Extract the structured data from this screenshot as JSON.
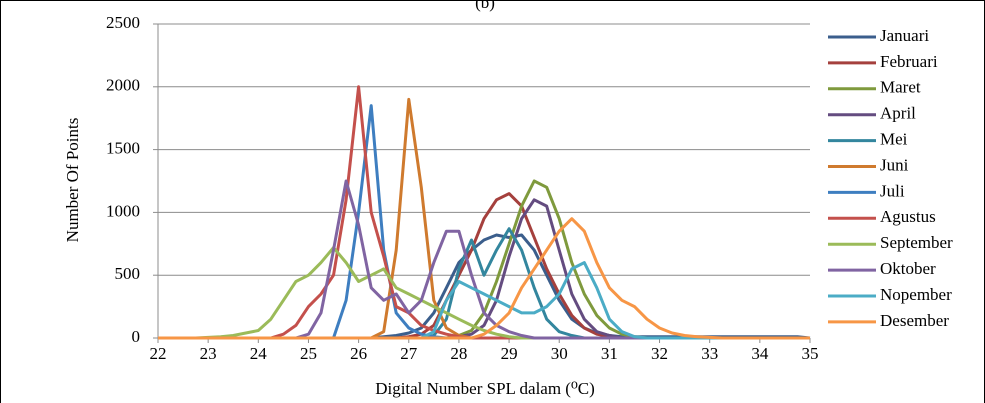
{
  "chart_data": {
    "type": "line",
    "title": "(b)",
    "x_label": "Digital Number SPL dalam (⁰C)",
    "y_label": "Number Of Points",
    "x": [
      22,
      22.25,
      22.5,
      22.75,
      23,
      23.25,
      23.5,
      23.75,
      24,
      24.25,
      24.5,
      24.75,
      25,
      25.25,
      25.5,
      25.75,
      26,
      26.25,
      26.5,
      26.75,
      27,
      27.25,
      27.5,
      27.75,
      28,
      28.25,
      28.5,
      28.75,
      29,
      29.25,
      29.5,
      29.75,
      30,
      30.25,
      30.5,
      30.75,
      31,
      31.25,
      31.5,
      31.75,
      32,
      32.25,
      32.5,
      32.75,
      33,
      33.25,
      33.5,
      33.75,
      34,
      34.25,
      34.5,
      34.75,
      35
    ],
    "xlim": [
      22,
      35
    ],
    "xticks": [
      22,
      23,
      24,
      25,
      26,
      27,
      28,
      29,
      30,
      31,
      32,
      33,
      34,
      35
    ],
    "ylim": [
      0,
      2500
    ],
    "yticks": [
      0,
      500,
      1000,
      1500,
      2000,
      2500
    ],
    "grid": true,
    "series": [
      {
        "name": "Januari",
        "color": "#3b5e8c",
        "values": [
          0,
          0,
          0,
          0,
          0,
          0,
          0,
          0,
          0,
          0,
          0,
          0,
          0,
          0,
          0,
          0,
          0,
          0,
          10,
          20,
          40,
          80,
          200,
          400,
          600,
          700,
          780,
          820,
          800,
          820,
          700,
          500,
          300,
          150,
          80,
          40,
          20,
          10,
          10,
          10,
          10,
          10,
          10,
          10,
          10,
          10,
          10,
          10,
          10,
          10,
          10,
          10,
          0
        ]
      },
      {
        "name": "Februari",
        "color": "#a5403d",
        "values": [
          0,
          0,
          0,
          0,
          0,
          0,
          0,
          0,
          0,
          0,
          0,
          0,
          0,
          0,
          0,
          0,
          0,
          0,
          0,
          0,
          10,
          30,
          100,
          300,
          500,
          700,
          950,
          1100,
          1150,
          1050,
          800,
          550,
          350,
          180,
          80,
          30,
          10,
          0,
          0,
          0,
          0,
          0,
          0,
          0,
          0,
          0,
          0,
          0,
          0,
          0,
          0,
          0,
          0
        ]
      },
      {
        "name": "Maret",
        "color": "#7f9a3d",
        "values": [
          0,
          0,
          0,
          0,
          0,
          0,
          0,
          0,
          0,
          0,
          0,
          0,
          0,
          0,
          0,
          0,
          0,
          0,
          0,
          0,
          0,
          0,
          0,
          0,
          20,
          60,
          200,
          450,
          750,
          1050,
          1250,
          1200,
          950,
          600,
          350,
          180,
          80,
          30,
          10,
          0,
          0,
          0,
          0,
          0,
          0,
          0,
          0,
          0,
          0,
          0,
          0,
          0,
          0
        ]
      },
      {
        "name": "April",
        "color": "#644c80",
        "values": [
          0,
          0,
          0,
          0,
          0,
          0,
          0,
          0,
          0,
          0,
          0,
          0,
          0,
          0,
          0,
          0,
          0,
          0,
          0,
          0,
          0,
          0,
          0,
          0,
          10,
          30,
          100,
          300,
          650,
          950,
          1100,
          1050,
          700,
          350,
          150,
          50,
          20,
          0,
          0,
          0,
          0,
          0,
          0,
          0,
          0,
          0,
          0,
          0,
          0,
          0,
          0,
          0,
          0
        ]
      },
      {
        "name": "Mei",
        "color": "#33869e",
        "values": [
          0,
          0,
          0,
          0,
          0,
          0,
          0,
          0,
          0,
          0,
          0,
          0,
          0,
          0,
          0,
          0,
          0,
          0,
          0,
          0,
          0,
          0,
          20,
          150,
          550,
          780,
          500,
          700,
          870,
          700,
          400,
          150,
          50,
          20,
          0,
          0,
          0,
          0,
          0,
          0,
          0,
          0,
          0,
          0,
          0,
          0,
          0,
          0,
          0,
          0,
          0,
          0,
          0
        ]
      },
      {
        "name": "Juni",
        "color": "#cf7a2e",
        "values": [
          0,
          0,
          0,
          0,
          0,
          0,
          0,
          0,
          0,
          0,
          0,
          0,
          0,
          0,
          0,
          0,
          0,
          0,
          50,
          700,
          1900,
          1200,
          300,
          80,
          20,
          0,
          0,
          0,
          0,
          0,
          0,
          0,
          0,
          0,
          0,
          0,
          0,
          0,
          0,
          0,
          0,
          0,
          0,
          0,
          0,
          0,
          0,
          0,
          0,
          0,
          0,
          0,
          0
        ]
      },
      {
        "name": "Juli",
        "color": "#3e7ec0",
        "values": [
          0,
          0,
          0,
          0,
          0,
          0,
          0,
          0,
          0,
          0,
          0,
          0,
          0,
          0,
          0,
          300,
          1000,
          1850,
          700,
          200,
          80,
          30,
          10,
          0,
          0,
          0,
          0,
          0,
          0,
          0,
          0,
          0,
          0,
          0,
          0,
          0,
          0,
          0,
          0,
          0,
          0,
          0,
          0,
          0,
          0,
          0,
          0,
          0,
          0,
          0,
          0,
          0,
          0
        ]
      },
      {
        "name": "Agustus",
        "color": "#c4504c",
        "values": [
          0,
          0,
          0,
          0,
          0,
          0,
          0,
          0,
          0,
          0,
          30,
          100,
          250,
          350,
          500,
          1100,
          2000,
          1000,
          650,
          250,
          200,
          100,
          60,
          30,
          10,
          0,
          0,
          0,
          0,
          0,
          0,
          0,
          0,
          0,
          0,
          0,
          0,
          0,
          0,
          0,
          0,
          0,
          0,
          0,
          0,
          0,
          0,
          0,
          0,
          0,
          0,
          0,
          0
        ]
      },
      {
        "name": "September",
        "color": "#9bbb59",
        "values": [
          0,
          0,
          0,
          0,
          5,
          10,
          20,
          40,
          60,
          150,
          300,
          450,
          500,
          600,
          720,
          600,
          450,
          500,
          550,
          400,
          350,
          300,
          250,
          200,
          150,
          100,
          60,
          30,
          10,
          0,
          0,
          0,
          0,
          0,
          0,
          0,
          0,
          0,
          0,
          0,
          0,
          0,
          0,
          0,
          0,
          0,
          0,
          0,
          0,
          0,
          0,
          0,
          0
        ]
      },
      {
        "name": "Oktober",
        "color": "#8064a2",
        "values": [
          0,
          0,
          0,
          0,
          0,
          0,
          0,
          0,
          0,
          0,
          0,
          0,
          30,
          200,
          700,
          1250,
          900,
          400,
          300,
          350,
          200,
          300,
          600,
          850,
          850,
          500,
          200,
          100,
          50,
          20,
          0,
          0,
          0,
          0,
          0,
          0,
          0,
          0,
          0,
          0,
          0,
          0,
          0,
          0,
          0,
          0,
          0,
          0,
          0,
          0,
          0,
          0,
          0
        ]
      },
      {
        "name": "Nopember",
        "color": "#4bacc6",
        "values": [
          0,
          0,
          0,
          0,
          0,
          0,
          0,
          0,
          0,
          0,
          0,
          0,
          0,
          0,
          0,
          0,
          0,
          0,
          0,
          0,
          0,
          0,
          50,
          300,
          450,
          400,
          350,
          300,
          250,
          200,
          200,
          250,
          350,
          550,
          600,
          400,
          150,
          50,
          10,
          0,
          0,
          0,
          0,
          0,
          0,
          0,
          0,
          0,
          0,
          0,
          0,
          0,
          0
        ]
      },
      {
        "name": "Desember",
        "color": "#f79646",
        "values": [
          0,
          0,
          0,
          0,
          0,
          0,
          0,
          0,
          0,
          0,
          0,
          0,
          0,
          0,
          0,
          0,
          0,
          0,
          0,
          0,
          0,
          0,
          0,
          0,
          0,
          0,
          30,
          100,
          200,
          400,
          550,
          700,
          850,
          950,
          850,
          600,
          400,
          300,
          250,
          150,
          80,
          40,
          20,
          10,
          5,
          0,
          0,
          0,
          0,
          0,
          0,
          0,
          0
        ]
      }
    ]
  }
}
